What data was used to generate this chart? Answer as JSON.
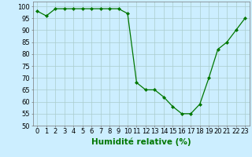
{
  "x": [
    0,
    1,
    2,
    3,
    4,
    5,
    6,
    7,
    8,
    9,
    10,
    11,
    12,
    13,
    14,
    15,
    16,
    17,
    18,
    19,
    20,
    21,
    22,
    23
  ],
  "y": [
    98,
    96,
    99,
    99,
    99,
    99,
    99,
    99,
    99,
    99,
    97,
    68,
    65,
    65,
    62,
    58,
    55,
    55,
    59,
    70,
    82,
    85,
    90,
    95
  ],
  "line_color": "#007700",
  "marker": "D",
  "marker_size": 2.0,
  "bg_color": "#cceeff",
  "grid_color": "#aacccc",
  "xlabel": "Humidité relative (%)",
  "xlabel_color": "#007700",
  "xlabel_fontsize": 7.5,
  "tick_fontsize": 6.0,
  "ylim": [
    50,
    102
  ],
  "xlim": [
    -0.5,
    23.5
  ],
  "yticks": [
    50,
    55,
    60,
    65,
    70,
    75,
    80,
    85,
    90,
    95,
    100
  ],
  "xticks": [
    0,
    1,
    2,
    3,
    4,
    5,
    6,
    7,
    8,
    9,
    10,
    11,
    12,
    13,
    14,
    15,
    16,
    17,
    18,
    19,
    20,
    21,
    22,
    23
  ]
}
